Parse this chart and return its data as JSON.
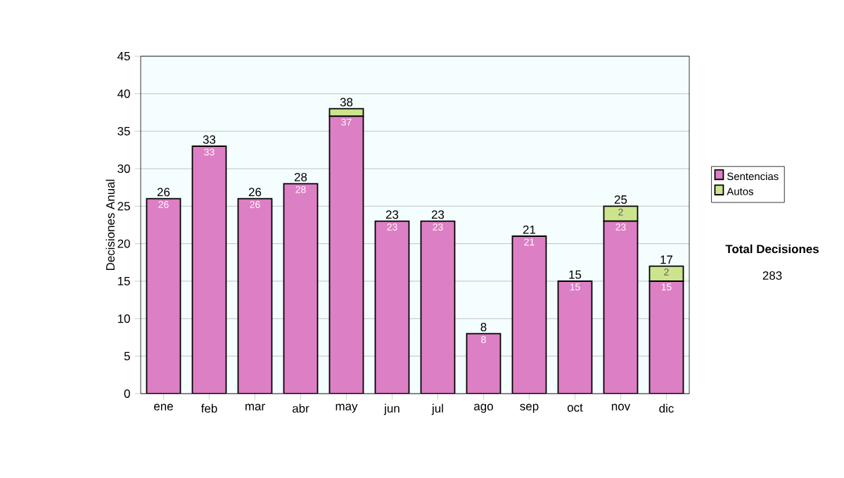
{
  "chart_data": {
    "type": "bar",
    "stacked": true,
    "ylabel": "Decisiones Anual",
    "categories": [
      "ene",
      "feb",
      "mar",
      "abr",
      "may",
      "jun",
      "jul",
      "ago",
      "sep",
      "oct",
      "nov",
      "dic"
    ],
    "series": [
      {
        "name": "Sentencias",
        "color": "#dd7fc4",
        "values": [
          26,
          33,
          26,
          28,
          37,
          23,
          23,
          8,
          21,
          15,
          23,
          15
        ],
        "value_labels": [
          "26",
          "33",
          "26",
          "28",
          "37",
          "23",
          "23",
          "8",
          "21",
          "15",
          "23",
          "15"
        ]
      },
      {
        "name": "Autos",
        "color": "#cde48e",
        "values": [
          0,
          0,
          0,
          0,
          1,
          0,
          0,
          0,
          0,
          0,
          2,
          2
        ],
        "value_labels": [
          null,
          null,
          null,
          null,
          null,
          null,
          null,
          null,
          null,
          null,
          "2",
          "2"
        ]
      }
    ],
    "totals": [
      "26",
      "33",
      "26",
      "28",
      "38",
      "23",
      "23",
      "8",
      "21",
      "15",
      "25",
      "17"
    ],
    "ylim": [
      0,
      45
    ],
    "yticks": [
      0,
      5,
      10,
      15,
      20,
      25,
      30,
      35,
      40,
      45
    ],
    "grid": "y",
    "legend": "right",
    "annotations": [
      "Total Decisiones",
      "283"
    ]
  }
}
